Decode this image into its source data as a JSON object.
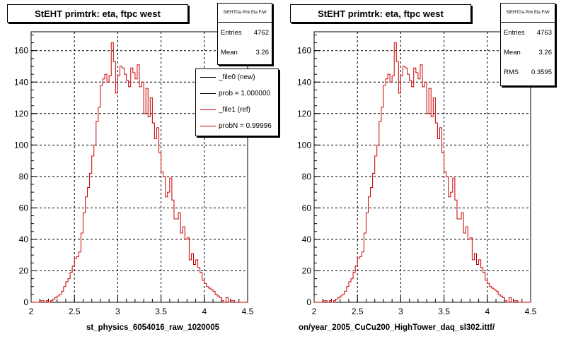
{
  "pads": [
    {
      "title": "StEHT primtrk: eta, ftpc west",
      "stats_header": "StEHTGa Ptrk Eta F/W",
      "stats": [
        {
          "label": "Entries",
          "value": "4762"
        },
        {
          "label": "Mean",
          "value": "3.26"
        }
      ],
      "legend": [
        {
          "label": "_file0 (new)",
          "color": "#000000"
        },
        {
          "label": "prob = 1.000000",
          "color": "#000000"
        },
        {
          "label": "_file1 (ref)",
          "color": "#cc0000"
        },
        {
          "label": "probN = 0.99996",
          "color": "#cc0000"
        }
      ],
      "xlabel": "st_physics_6054016_raw_1020005"
    },
    {
      "title": "StEHT primtrk: eta, ftpc west",
      "stats_header": "StEHTGa Ptrk Eta F/W",
      "stats": [
        {
          "label": "Entries",
          "value": "4763"
        },
        {
          "label": "Mean",
          "value": "3.26"
        },
        {
          "label": "RMS",
          "value": "0.3595"
        }
      ],
      "legend": [],
      "xlabel": "on/year_2005_CuCu200_HighTower_daq_sl302.ittf/"
    }
  ],
  "chart_data": {
    "type": "bar",
    "style": "step histogram",
    "xlim": [
      2,
      4.5
    ],
    "ylim": [
      0,
      172
    ],
    "x_ticks": [
      "2",
      "2.5",
      "3",
      "3.5",
      "4",
      "4.5"
    ],
    "y_ticks": [
      "0",
      "20",
      "40",
      "60",
      "80",
      "100",
      "120",
      "140",
      "160"
    ],
    "grid": true,
    "bin_start": 2.0,
    "bin_width": 0.025,
    "series": [
      {
        "name": "_file1 (ref)",
        "color": "#cc0000",
        "values": [
          0,
          0,
          0,
          0,
          1,
          1,
          0,
          1,
          0,
          1,
          2,
          3,
          4,
          5,
          7,
          10,
          13,
          15,
          19,
          23,
          28,
          29,
          32,
          44,
          57,
          67,
          73,
          82,
          93,
          100,
          115,
          124,
          138,
          142,
          145,
          140,
          144,
          165,
          153,
          133,
          144,
          150,
          149,
          145,
          141,
          137,
          149,
          146,
          142,
          151,
          137,
          140,
          120,
          136,
          118,
          130,
          114,
          104,
          111,
          95,
          83,
          80,
          67,
          70,
          79,
          65,
          53,
          53,
          57,
          44,
          48,
          40,
          41,
          27,
          31,
          24,
          27,
          22,
          19,
          14,
          12,
          10,
          9,
          8,
          7,
          5,
          4,
          3,
          1,
          0,
          3,
          0,
          1,
          1,
          0,
          0,
          0,
          0,
          0,
          0
        ]
      }
    ]
  }
}
